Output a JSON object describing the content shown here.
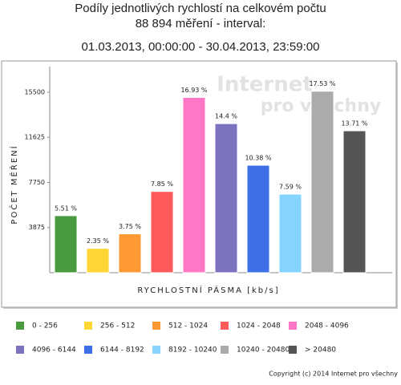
{
  "chart_data": {
    "type": "bar",
    "title": "Podíly jednotlivých rychlostí na celkovém počtu",
    "subtitle": "88 894 měření - interval:",
    "interval": "01.03.2013, 00:00:00 - 30.04.2013, 23:59:00",
    "y_label": "POČET MĚŘENÍ",
    "x_label": "RYCHLOSTNÍ PÁSMA [kb/s]",
    "categories": [
      "0 - 256",
      "256 - 512",
      "512 - 1024",
      "1024 - 2048",
      "2048 - 4096",
      "4096 - 6144",
      "6144 - 8192",
      "8192 - 10240",
      "10240 - 20480",
      "> 20480"
    ],
    "values": [
      4898,
      2089,
      3334,
      6978,
      15050,
      12801,
      9227,
      6747,
      15583,
      12187
    ],
    "share_labels": [
      "5.51 %",
      "2.35 %",
      "3.75 %",
      "7.85 %",
      "16.93 %",
      "14.4 %",
      "10.38 %",
      "7.59 %",
      "17.53 %",
      "13.71 %"
    ],
    "colors": [
      "#4a9a3f",
      "#ffd633",
      "#ff9933",
      "#ff5a5a",
      "#ff77c6",
      "#7b72c0",
      "#3d6fe8",
      "#85d3ff",
      "#ababab",
      "#555555"
    ],
    "ylim": [
      0,
      17700
    ],
    "yticks": [
      3875,
      7750,
      11625,
      15500
    ],
    "watermark": [
      "Internet",
      "pro všechny"
    ],
    "copyright": "Copyright (c) 2014 Internet pro všechny"
  }
}
